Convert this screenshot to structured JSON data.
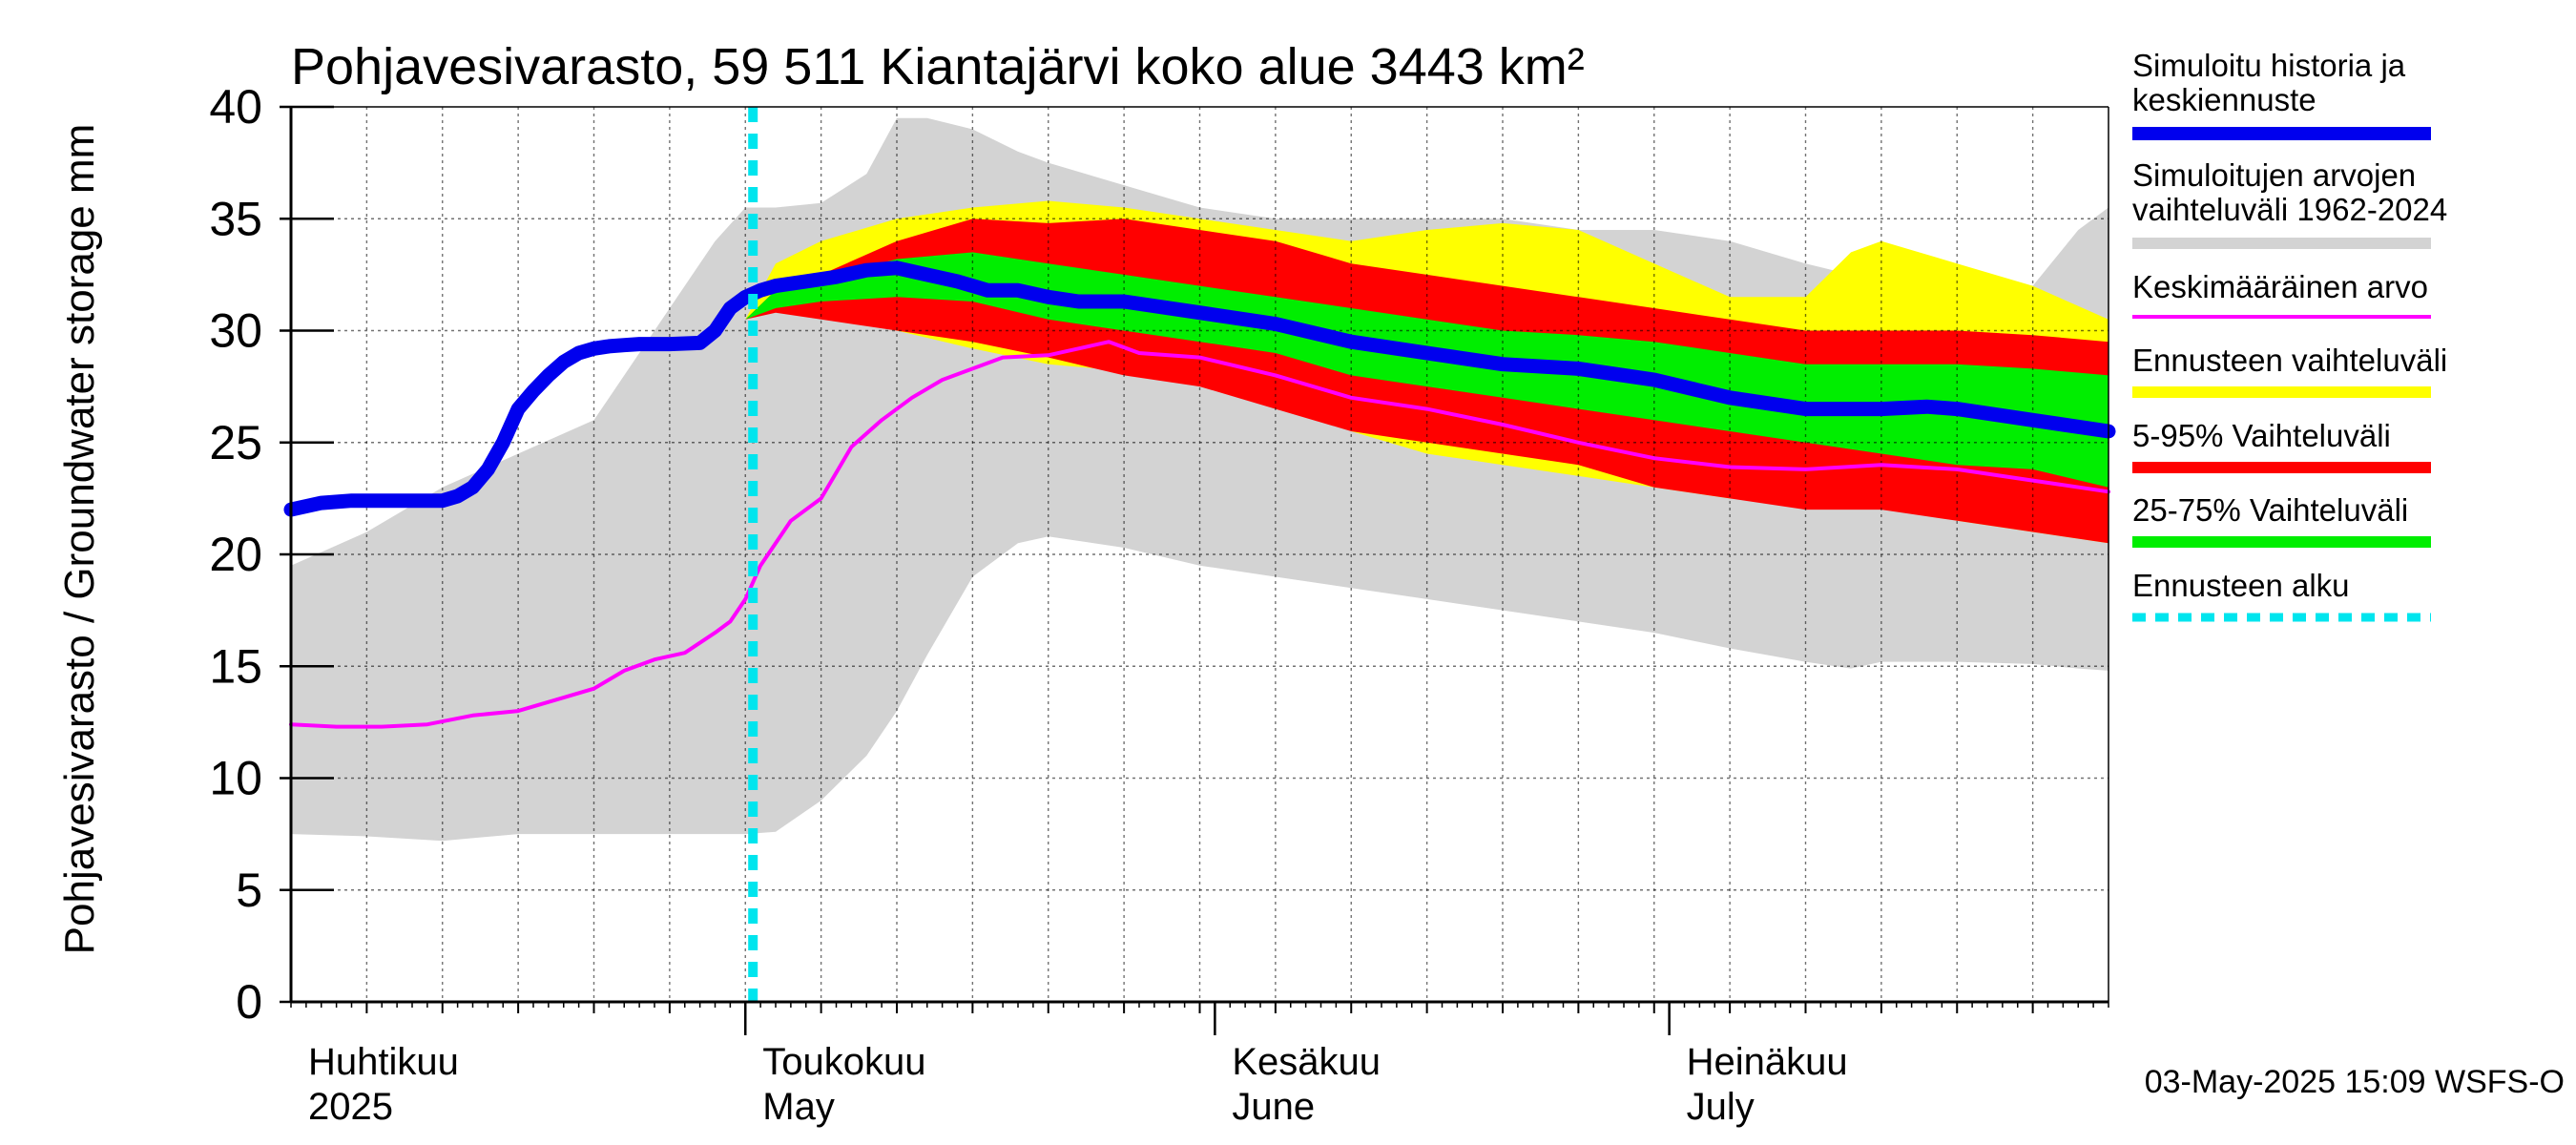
{
  "chart_data": {
    "type": "area",
    "title": "Pohjavesivarasto, 59 511 Kiantajärvi koko alue 3443 km²",
    "ylabel": "Pohjavesivarasto / Groundwater storage   mm",
    "ylim": [
      0,
      40
    ],
    "yticks": [
      0,
      5,
      10,
      15,
      20,
      25,
      30,
      35,
      40
    ],
    "xlim_days": [
      0,
      120
    ],
    "month_labels": [
      {
        "day": 0,
        "line1": "Huhtikuu",
        "line2": "2025"
      },
      {
        "day": 30,
        "line1": "Toukokuu",
        "line2": "May"
      },
      {
        "day": 61,
        "line1": "Kesäkuu",
        "line2": "June"
      },
      {
        "day": 91,
        "line1": "Heinäkuu",
        "line2": "July"
      }
    ],
    "forecast_start_day": 30.5,
    "footer": "03-May-2025 15:09 WSFS-O",
    "legend": [
      {
        "label": "Simuloitu historia ja keskiennuste",
        "color": "#0000ee",
        "style": "thick"
      },
      {
        "label": "Simuloitujen arvojen vaihteluväli 1962-2024",
        "color": "#d3d3d3",
        "style": "band"
      },
      {
        "label": "Keskimääräinen arvo",
        "color": "#ff00ff",
        "style": "line"
      },
      {
        "label": "Ennusteen vaihteluväli",
        "color": "#ffff00",
        "style": "band"
      },
      {
        "label": "5-95% Vaihteluväli",
        "color": "#ff0000",
        "style": "band"
      },
      {
        "label": "25-75% Vaihteluväli",
        "color": "#00ee00",
        "style": "band"
      },
      {
        "label": "Ennusteen alku",
        "color": "#00e5ee",
        "style": "dotted"
      }
    ],
    "series": {
      "hist_range": {
        "name": "Simuloitujen arvojen vaihteluväli 1962-2024",
        "x": [
          0,
          5,
          10,
          15,
          20,
          25,
          28,
          30,
          32,
          35,
          38,
          40,
          42,
          45,
          48,
          50,
          55,
          60,
          65,
          70,
          75,
          80,
          85,
          90,
          95,
          100,
          103,
          105,
          110,
          115,
          118,
          120
        ],
        "upper": [
          19.5,
          21,
          23,
          24.5,
          26,
          31,
          34,
          35.5,
          35.5,
          35.7,
          37,
          39.5,
          39.5,
          39,
          38,
          37.5,
          36.5,
          35.5,
          35.0,
          35.0,
          35.0,
          35.0,
          34.5,
          34.5,
          34.0,
          33.0,
          32.5,
          32.5,
          32.5,
          32.0,
          34.5,
          35.5
        ],
        "lower": [
          7.5,
          7.4,
          7.2,
          7.5,
          7.5,
          7.5,
          7.5,
          7.5,
          7.6,
          9.0,
          11.0,
          13.0,
          15.5,
          19.0,
          20.5,
          20.8,
          20.3,
          19.5,
          19.0,
          18.5,
          18.0,
          17.5,
          17.0,
          16.5,
          15.8,
          15.2,
          14.9,
          15.2,
          15.2,
          15.1,
          14.9,
          14.8
        ]
      },
      "forecast_range": {
        "name": "Ennusteen vaihteluväli",
        "x": [
          30,
          32,
          35,
          40,
          45,
          50,
          55,
          60,
          65,
          70,
          75,
          80,
          85,
          90,
          95,
          100,
          103,
          105,
          110,
          115,
          120
        ],
        "upper": [
          30.5,
          33.0,
          34.0,
          35.0,
          35.5,
          35.8,
          35.5,
          35.0,
          34.5,
          34.0,
          34.5,
          34.8,
          34.5,
          33.0,
          31.5,
          31.5,
          33.5,
          34.0,
          33.0,
          32.0,
          30.5
        ],
        "lower": [
          30.5,
          30.9,
          30.8,
          30.0,
          29.2,
          28.5,
          28.2,
          27.8,
          27.0,
          25.5,
          24.5,
          24.0,
          23.5,
          23.0,
          22.5,
          22.8,
          23.5,
          22.5,
          21.5,
          21.0,
          20.5
        ]
      },
      "p5_95": {
        "name": "5-95% Vaihteluväli",
        "x": [
          30,
          32,
          35,
          40,
          45,
          50,
          55,
          60,
          65,
          70,
          75,
          80,
          85,
          90,
          95,
          100,
          105,
          110,
          115,
          120
        ],
        "upper": [
          30.5,
          31.8,
          32.5,
          34.0,
          35.0,
          34.8,
          35.0,
          34.5,
          34.0,
          33.0,
          32.5,
          32.0,
          31.5,
          31.0,
          30.5,
          30.0,
          30.0,
          30.0,
          29.8,
          29.5
        ],
        "lower": [
          30.5,
          30.8,
          30.5,
          30.0,
          29.5,
          28.8,
          28.0,
          27.5,
          26.5,
          25.5,
          25.0,
          24.5,
          24.0,
          23.0,
          22.5,
          22.0,
          22.0,
          21.5,
          21.0,
          20.5
        ]
      },
      "p25_75": {
        "name": "25-75% Vaihteluväli",
        "x": [
          30,
          32,
          35,
          40,
          45,
          50,
          55,
          60,
          65,
          70,
          75,
          80,
          85,
          90,
          95,
          100,
          105,
          110,
          115,
          120
        ],
        "upper": [
          30.5,
          31.8,
          32.3,
          33.2,
          33.5,
          33.0,
          32.5,
          32.0,
          31.5,
          31.0,
          30.5,
          30.0,
          29.8,
          29.5,
          29.0,
          28.5,
          28.5,
          28.5,
          28.3,
          28.0
        ],
        "lower": [
          30.5,
          31.0,
          31.3,
          31.5,
          31.3,
          30.5,
          30.0,
          29.5,
          29.0,
          28.0,
          27.5,
          27.0,
          26.5,
          26.0,
          25.5,
          25.0,
          24.5,
          24.0,
          23.8,
          23.0
        ]
      },
      "mean": {
        "name": "Keskimääräinen arvo",
        "x": [
          0,
          3,
          6,
          9,
          12,
          15,
          18,
          20,
          22,
          24,
          26,
          28,
          29,
          30,
          31,
          33,
          35,
          37,
          39,
          41,
          43,
          45,
          47,
          50,
          52,
          54,
          56,
          60,
          65,
          70,
          75,
          80,
          85,
          90,
          95,
          100,
          105,
          110,
          115,
          120
        ],
        "y": [
          12.4,
          12.3,
          12.3,
          12.4,
          12.8,
          13.0,
          13.6,
          14.0,
          14.8,
          15.3,
          15.6,
          16.5,
          17.0,
          18.0,
          19.5,
          21.5,
          22.5,
          24.8,
          26.0,
          27.0,
          27.8,
          28.3,
          28.8,
          28.9,
          29.2,
          29.5,
          29.0,
          28.8,
          28.0,
          27.0,
          26.5,
          25.8,
          25.0,
          24.3,
          23.9,
          23.8,
          24.0,
          23.8,
          23.3,
          22.8
        ]
      },
      "sim_history": {
        "name": "Simuloitu historia ja keskiennuste",
        "x": [
          0,
          2,
          4,
          6,
          8,
          10,
          11,
          12,
          13,
          14,
          15,
          16,
          17,
          18,
          19,
          20,
          21,
          22,
          23,
          25,
          27,
          28,
          29,
          30,
          31,
          32,
          34,
          36,
          38,
          40,
          42,
          44,
          46,
          48,
          50,
          52,
          55,
          60,
          65,
          70,
          75,
          80,
          85,
          90,
          95,
          100,
          103,
          105,
          108,
          110,
          115,
          120
        ],
        "y": [
          22.0,
          22.3,
          22.4,
          22.4,
          22.4,
          22.4,
          22.6,
          23.0,
          23.8,
          25.0,
          26.5,
          27.3,
          28.0,
          28.6,
          29.0,
          29.2,
          29.3,
          29.35,
          29.4,
          29.4,
          29.45,
          30.0,
          31.0,
          31.5,
          31.8,
          32.0,
          32.2,
          32.4,
          32.7,
          32.8,
          32.5,
          32.2,
          31.8,
          31.8,
          31.5,
          31.3,
          31.3,
          30.8,
          30.3,
          29.5,
          29.0,
          28.5,
          28.3,
          27.8,
          27.0,
          26.5,
          26.5,
          26.5,
          26.6,
          26.5,
          26.0,
          25.5
        ]
      }
    }
  }
}
